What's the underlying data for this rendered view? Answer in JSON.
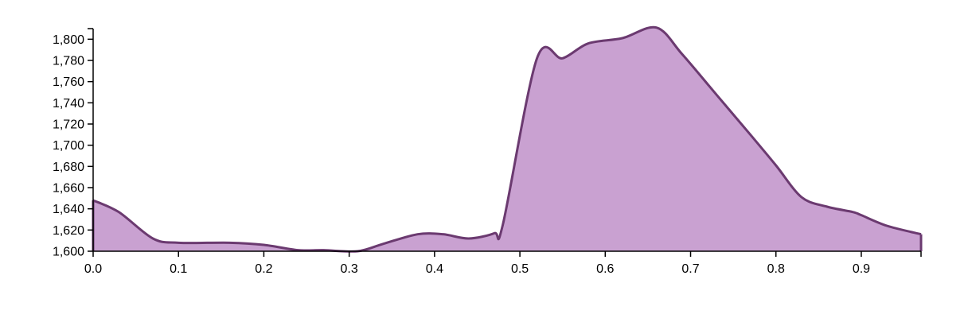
{
  "chart_data": {
    "type": "area",
    "title": "",
    "xlabel": "",
    "ylabel": "",
    "xlim": [
      0.0,
      0.97
    ],
    "ylim": [
      1600,
      1810
    ],
    "x_ticks": [
      "0.0",
      "0.1",
      "0.2",
      "0.3",
      "0.4",
      "0.5",
      "0.6",
      "0.7",
      "0.8",
      "0.9"
    ],
    "y_ticks": [
      "1,600",
      "1,620",
      "1,640",
      "1,660",
      "1,680",
      "1,700",
      "1,720",
      "1,740",
      "1,760",
      "1,780",
      "1,800"
    ],
    "grid": false,
    "legend": "none",
    "colors": {
      "fill": "#c9a1d1",
      "stroke": "#6b3a70"
    },
    "series": [
      {
        "x": [
          0.0,
          0.03,
          0.07,
          0.1,
          0.16,
          0.2,
          0.24,
          0.27,
          0.31,
          0.34,
          0.38,
          0.41,
          0.44,
          0.47,
          0.48,
          0.52,
          0.55,
          0.58,
          0.62,
          0.66,
          0.69,
          0.73,
          0.77,
          0.8,
          0.83,
          0.86,
          0.89,
          0.9,
          0.93,
          0.97
        ],
        "y": [
          1648,
          1637,
          1612,
          1608,
          1608,
          1606,
          1601,
          1601,
          1600,
          1607,
          1616,
          1616,
          1612,
          1617,
          1625,
          1782,
          1782,
          1796,
          1801,
          1811,
          1786,
          1748,
          1710,
          1681,
          1651,
          1642,
          1637,
          1634,
          1624,
          1616
        ]
      }
    ]
  }
}
